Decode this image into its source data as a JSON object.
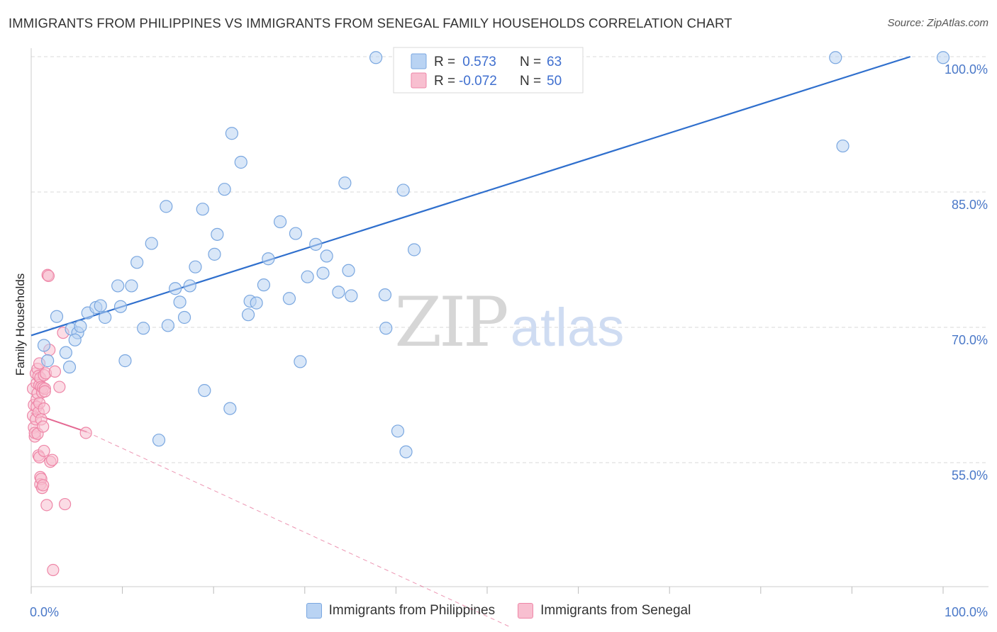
{
  "title": "IMMIGRANTS FROM PHILIPPINES VS IMMIGRANTS FROM SENEGAL FAMILY HOUSEHOLDS CORRELATION CHART",
  "source": "Source: ZipAtlas.com",
  "watermark": {
    "zip": "ZIP",
    "atlas": "atlas"
  },
  "colors": {
    "blue_fill": "#b9d3f3",
    "blue_stroke": "#7aa7e0",
    "blue_line": "#2f6fcd",
    "pink_fill": "#f8bfd0",
    "pink_stroke": "#ee86a7",
    "pink_line": "#e46892",
    "axis_label": "#4a78c8",
    "grid": "#d8d8d8"
  },
  "legend": {
    "rows": [
      {
        "r_label": "R =",
        "r_value": " 0.573",
        "n_label": "N =",
        "n_value": "63"
      },
      {
        "r_label": "R =",
        "r_value": "-0.072",
        "n_label": "N =",
        "n_value": "50"
      }
    ]
  },
  "bottom_legend": [
    {
      "label": "Immigrants from Philippines"
    },
    {
      "label": "Immigrants from Senegal"
    }
  ],
  "chart_data": {
    "type": "scatter",
    "title": "IMMIGRANTS FROM PHILIPPINES VS IMMIGRANTS FROM SENEGAL FAMILY HOUSEHOLDS CORRELATION CHART",
    "xlabel": "",
    "ylabel": "Family Households",
    "xlim": [
      0,
      100
    ],
    "ylim": [
      37.5,
      102.5
    ],
    "x_tick_labels": [
      "0.0%",
      "100.0%"
    ],
    "y_ticks": [
      55,
      70,
      85,
      100
    ],
    "y_tick_labels": [
      "55.0%",
      "70.0%",
      "85.0%",
      "100.0%"
    ],
    "grid": true,
    "legend_position": "top-center",
    "series": [
      {
        "name": "Immigrants from Philippines",
        "R": 0.573,
        "N": 63,
        "trend": {
          "x": [
            0,
            96.4
          ],
          "y": [
            69.1,
            100.0
          ]
        },
        "points": [
          [
            1.4,
            68.0
          ],
          [
            1.8,
            66.3
          ],
          [
            2.8,
            71.2
          ],
          [
            3.8,
            67.2
          ],
          [
            4.2,
            65.6
          ],
          [
            4.4,
            69.8
          ],
          [
            5.1,
            69.4
          ],
          [
            5.4,
            70.1
          ],
          [
            4.8,
            68.6
          ],
          [
            6.2,
            71.6
          ],
          [
            7.1,
            72.2
          ],
          [
            7.6,
            72.4
          ],
          [
            8.1,
            71.1
          ],
          [
            9.5,
            74.6
          ],
          [
            9.8,
            72.3
          ],
          [
            10.3,
            66.3
          ],
          [
            11.0,
            74.6
          ],
          [
            11.6,
            77.2
          ],
          [
            12.3,
            69.9
          ],
          [
            13.2,
            79.3
          ],
          [
            14.0,
            57.5
          ],
          [
            14.8,
            83.4
          ],
          [
            15.0,
            70.2
          ],
          [
            15.8,
            74.3
          ],
          [
            16.3,
            72.8
          ],
          [
            16.8,
            71.1
          ],
          [
            17.4,
            74.6
          ],
          [
            18.0,
            76.7
          ],
          [
            18.8,
            83.1
          ],
          [
            19.0,
            63.0
          ],
          [
            20.1,
            78.1
          ],
          [
            20.4,
            80.3
          ],
          [
            21.2,
            85.3
          ],
          [
            21.8,
            61.0
          ],
          [
            22.0,
            91.5
          ],
          [
            23.0,
            88.3
          ],
          [
            23.8,
            71.4
          ],
          [
            24.0,
            72.9
          ],
          [
            24.7,
            72.7
          ],
          [
            25.5,
            74.7
          ],
          [
            26.0,
            77.6
          ],
          [
            27.3,
            81.7
          ],
          [
            28.3,
            73.2
          ],
          [
            29.0,
            80.4
          ],
          [
            29.5,
            66.2
          ],
          [
            30.3,
            75.6
          ],
          [
            31.2,
            79.2
          ],
          [
            32.0,
            76.0
          ],
          [
            32.4,
            77.9
          ],
          [
            33.7,
            73.9
          ],
          [
            34.4,
            86.0
          ],
          [
            34.8,
            76.3
          ],
          [
            35.1,
            73.5
          ],
          [
            37.8,
            99.9
          ],
          [
            38.8,
            73.6
          ],
          [
            38.9,
            69.9
          ],
          [
            40.2,
            58.5
          ],
          [
            40.8,
            85.2
          ],
          [
            41.1,
            56.2
          ],
          [
            42.0,
            78.6
          ],
          [
            88.2,
            99.9
          ],
          [
            89.0,
            90.1
          ],
          [
            100.0,
            99.9
          ]
        ]
      },
      {
        "name": "Immigrants from Senegal",
        "R": -0.072,
        "N": 50,
        "trend": {
          "x": [
            0,
            6.1
          ],
          "y": [
            60.5,
            58.4
          ]
        },
        "trend_extension": {
          "x": [
            6.1,
            52.5
          ],
          "y": [
            58.4,
            36.8
          ]
        },
        "points": [
          [
            0.2,
            63.2
          ],
          [
            0.2,
            60.2
          ],
          [
            0.3,
            58.9
          ],
          [
            0.3,
            61.4
          ],
          [
            0.4,
            57.9
          ],
          [
            0.4,
            58.3
          ],
          [
            0.5,
            59.8
          ],
          [
            0.5,
            64.9
          ],
          [
            0.6,
            62.0
          ],
          [
            0.6,
            63.8
          ],
          [
            0.6,
            61.2
          ],
          [
            0.7,
            65.4
          ],
          [
            0.7,
            62.7
          ],
          [
            0.7,
            58.2
          ],
          [
            0.8,
            64.6
          ],
          [
            0.8,
            55.8
          ],
          [
            0.8,
            60.6
          ],
          [
            0.9,
            66.0
          ],
          [
            0.9,
            55.6
          ],
          [
            0.9,
            63.6
          ],
          [
            0.9,
            61.6
          ],
          [
            1.0,
            53.4
          ],
          [
            1.0,
            52.6
          ],
          [
            1.0,
            64.4
          ],
          [
            1.1,
            53.2
          ],
          [
            1.1,
            63.4
          ],
          [
            1.1,
            59.8
          ],
          [
            1.2,
            62.8
          ],
          [
            1.2,
            52.2
          ],
          [
            1.3,
            52.5
          ],
          [
            1.3,
            63.3
          ],
          [
            1.3,
            59.0
          ],
          [
            1.4,
            64.7
          ],
          [
            1.4,
            56.3
          ],
          [
            1.4,
            61.0
          ],
          [
            1.5,
            63.2
          ],
          [
            1.5,
            62.9
          ],
          [
            1.6,
            64.9
          ],
          [
            1.7,
            50.3
          ],
          [
            1.8,
            75.8
          ],
          [
            1.9,
            75.7
          ],
          [
            2.0,
            67.5
          ],
          [
            2.1,
            55.1
          ],
          [
            2.3,
            55.3
          ],
          [
            2.4,
            43.1
          ],
          [
            2.6,
            65.1
          ],
          [
            3.1,
            63.4
          ],
          [
            3.5,
            69.4
          ],
          [
            3.7,
            50.4
          ],
          [
            6.0,
            58.3
          ]
        ]
      }
    ]
  }
}
